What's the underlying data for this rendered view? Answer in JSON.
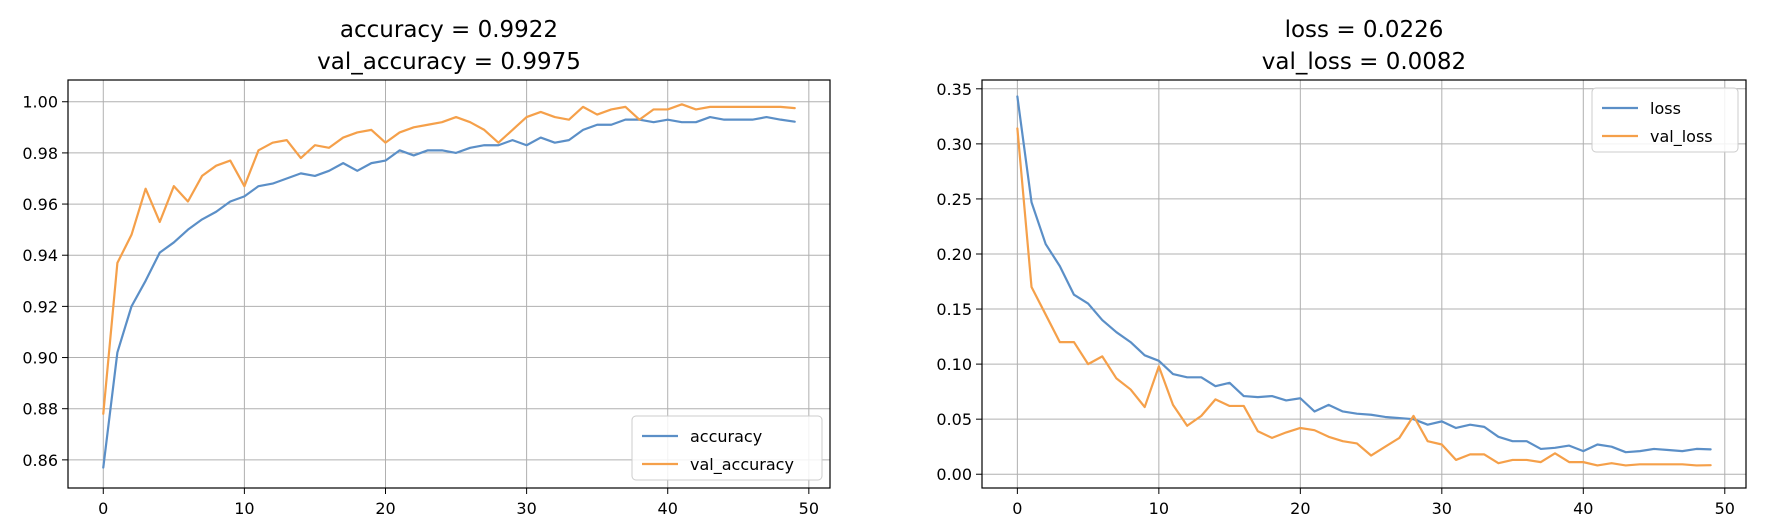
{
  "chart_data": [
    {
      "type": "line",
      "title": [
        "accuracy = 0.9922",
        "val_accuracy = 0.9975"
      ],
      "xlabel": "",
      "ylabel": "",
      "xlim": [
        -2.5,
        51.5
      ],
      "ylim": [
        0.849,
        1.0085
      ],
      "xticks": [
        0,
        10,
        20,
        30,
        40,
        50
      ],
      "xtick_labels": [
        "0",
        "10",
        "20",
        "30",
        "40",
        "50"
      ],
      "yticks": [
        0.86,
        0.88,
        0.9,
        0.92,
        0.94,
        0.96,
        0.98,
        1.0
      ],
      "ytick_labels": [
        "0.86",
        "0.88",
        "0.90",
        "0.92",
        "0.94",
        "0.96",
        "0.98",
        "1.00"
      ],
      "grid": true,
      "legend_position": "lower-right",
      "x": [
        0,
        1,
        2,
        3,
        4,
        5,
        6,
        7,
        8,
        9,
        10,
        11,
        12,
        13,
        14,
        15,
        16,
        17,
        18,
        19,
        20,
        21,
        22,
        23,
        24,
        25,
        26,
        27,
        28,
        29,
        30,
        31,
        32,
        33,
        34,
        35,
        36,
        37,
        38,
        39,
        40,
        41,
        42,
        43,
        44,
        45,
        46,
        47,
        48,
        49
      ],
      "series": [
        {
          "name": "accuracy",
          "color": "#5b8fc7",
          "values": [
            0.857,
            0.902,
            0.92,
            0.93,
            0.941,
            0.945,
            0.95,
            0.954,
            0.957,
            0.961,
            0.963,
            0.967,
            0.968,
            0.97,
            0.972,
            0.971,
            0.973,
            0.976,
            0.973,
            0.976,
            0.977,
            0.981,
            0.979,
            0.981,
            0.981,
            0.98,
            0.982,
            0.983,
            0.983,
            0.985,
            0.983,
            0.986,
            0.984,
            0.985,
            0.989,
            0.991,
            0.991,
            0.993,
            0.993,
            0.992,
            0.993,
            0.992,
            0.992,
            0.994,
            0.993,
            0.993,
            0.993,
            0.994,
            0.993,
            0.9922
          ]
        },
        {
          "name": "val_accuracy",
          "color": "#f5a04a",
          "values": [
            0.878,
            0.937,
            0.948,
            0.966,
            0.953,
            0.967,
            0.961,
            0.971,
            0.975,
            0.977,
            0.967,
            0.981,
            0.984,
            0.985,
            0.978,
            0.983,
            0.982,
            0.986,
            0.988,
            0.989,
            0.984,
            0.988,
            0.99,
            0.991,
            0.992,
            0.994,
            0.992,
            0.989,
            0.984,
            0.989,
            0.994,
            0.996,
            0.994,
            0.993,
            0.998,
            0.995,
            0.997,
            0.998,
            0.993,
            0.997,
            0.997,
            0.999,
            0.997,
            0.998,
            0.998,
            0.998,
            0.998,
            0.998,
            0.998,
            0.9975
          ]
        }
      ]
    },
    {
      "type": "line",
      "title": [
        "loss = 0.0226",
        "val_loss = 0.0082"
      ],
      "xlabel": "",
      "ylabel": "",
      "xlim": [
        -2.5,
        51.5
      ],
      "ylim": [
        -0.0125,
        0.358
      ],
      "xticks": [
        0,
        10,
        20,
        30,
        40,
        50
      ],
      "xtick_labels": [
        "0",
        "10",
        "20",
        "30",
        "40",
        "50"
      ],
      "yticks": [
        0.0,
        0.05,
        0.1,
        0.15,
        0.2,
        0.25,
        0.3,
        0.35
      ],
      "ytick_labels": [
        "0.00",
        "0.05",
        "0.10",
        "0.15",
        "0.20",
        "0.25",
        "0.30",
        "0.35"
      ],
      "grid": true,
      "legend_position": "upper-right",
      "x": [
        0,
        1,
        2,
        3,
        4,
        5,
        6,
        7,
        8,
        9,
        10,
        11,
        12,
        13,
        14,
        15,
        16,
        17,
        18,
        19,
        20,
        21,
        22,
        23,
        24,
        25,
        26,
        27,
        28,
        29,
        30,
        31,
        32,
        33,
        34,
        35,
        36,
        37,
        38,
        39,
        40,
        41,
        42,
        43,
        44,
        45,
        46,
        47,
        48,
        49
      ],
      "series": [
        {
          "name": "loss",
          "color": "#5b8fc7",
          "values": [
            0.343,
            0.247,
            0.209,
            0.189,
            0.163,
            0.155,
            0.14,
            0.129,
            0.12,
            0.108,
            0.103,
            0.091,
            0.088,
            0.088,
            0.08,
            0.083,
            0.071,
            0.07,
            0.071,
            0.067,
            0.069,
            0.057,
            0.063,
            0.057,
            0.055,
            0.054,
            0.052,
            0.051,
            0.05,
            0.045,
            0.048,
            0.042,
            0.045,
            0.043,
            0.034,
            0.03,
            0.03,
            0.023,
            0.024,
            0.026,
            0.021,
            0.027,
            0.025,
            0.02,
            0.021,
            0.023,
            0.022,
            0.021,
            0.023,
            0.0226
          ]
        },
        {
          "name": "val_loss",
          "color": "#f5a04a",
          "values": [
            0.314,
            0.17,
            0.145,
            0.12,
            0.12,
            0.1,
            0.107,
            0.087,
            0.077,
            0.061,
            0.098,
            0.063,
            0.044,
            0.053,
            0.068,
            0.062,
            0.062,
            0.039,
            0.033,
            0.038,
            0.042,
            0.04,
            0.034,
            0.03,
            0.028,
            0.017,
            0.025,
            0.033,
            0.053,
            0.03,
            0.027,
            0.013,
            0.018,
            0.018,
            0.01,
            0.013,
            0.013,
            0.011,
            0.019,
            0.011,
            0.011,
            0.008,
            0.01,
            0.008,
            0.009,
            0.009,
            0.009,
            0.009,
            0.008,
            0.0082
          ]
        }
      ]
    }
  ]
}
